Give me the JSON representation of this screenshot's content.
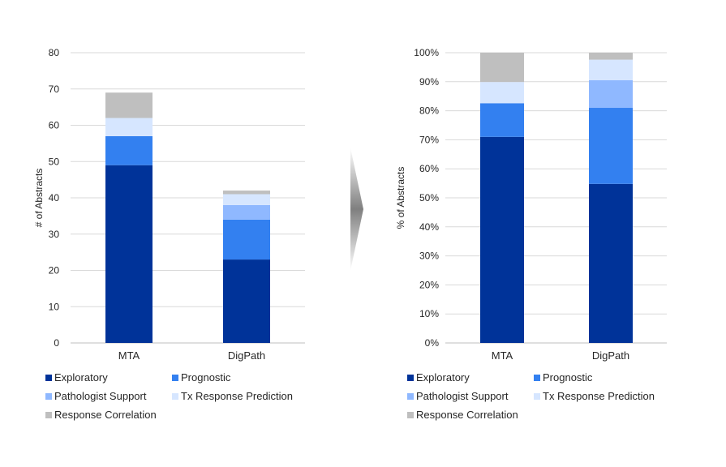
{
  "chart_data": [
    {
      "type": "bar",
      "stacked": true,
      "title": "",
      "xlabel": "",
      "ylabel": "# of Abstracts",
      "ylim": [
        0,
        80
      ],
      "yticks": [
        "0",
        "10",
        "20",
        "30",
        "40",
        "50",
        "60",
        "70",
        "80"
      ],
      "grid": true,
      "legend_position": "bottom",
      "categories": [
        "MTA",
        "DigPath"
      ],
      "series": [
        {
          "name": "Exploratory",
          "color": "#003399",
          "values": [
            49,
            23
          ]
        },
        {
          "name": "Prognostic",
          "color": "#3380f0",
          "values": [
            8,
            11
          ]
        },
        {
          "name": "Pathologist Support",
          "color": "#8fb8ff",
          "values": [
            0,
            4
          ]
        },
        {
          "name": "Tx Response Prediction",
          "color": "#d6e6ff",
          "values": [
            5,
            3
          ]
        },
        {
          "name": "Response Correlation",
          "color": "#bfbfbf",
          "values": [
            7,
            1
          ]
        }
      ]
    },
    {
      "type": "bar",
      "stacked": true,
      "title": "",
      "xlabel": "",
      "ylabel": "% of Abstracts",
      "ylim": [
        0,
        100
      ],
      "yticks": [
        "0%",
        "10%",
        "20%",
        "30%",
        "40%",
        "50%",
        "60%",
        "70%",
        "80%",
        "90%",
        "100%"
      ],
      "grid": true,
      "legend_position": "bottom",
      "categories": [
        "MTA",
        "DigPath"
      ],
      "series": [
        {
          "name": "Exploratory",
          "color": "#003399",
          "values": [
            71,
            54.8
          ]
        },
        {
          "name": "Prognostic",
          "color": "#3380f0",
          "values": [
            11.6,
            26.2
          ]
        },
        {
          "name": "Pathologist Support",
          "color": "#8fb8ff",
          "values": [
            0,
            9.5
          ]
        },
        {
          "name": "Tx Response Prediction",
          "color": "#d6e6ff",
          "values": [
            7.3,
            7.1
          ]
        },
        {
          "name": "Response Correlation",
          "color": "#bfbfbf",
          "values": [
            10.1,
            2.4
          ]
        }
      ]
    }
  ],
  "arrow": {
    "icon": "chevron-right-arrow-icon",
    "color": "#7f7f7f"
  }
}
